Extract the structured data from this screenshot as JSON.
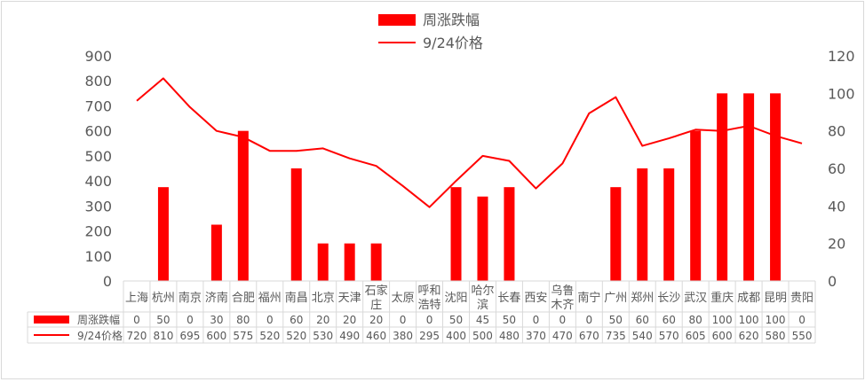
{
  "chart_data": {
    "type": "bar",
    "categories": [
      "上海",
      "杭州",
      "南京",
      "济南",
      "合肥",
      "福州",
      "南昌",
      "北京",
      "天津",
      "石家庄",
      "太原",
      "呼和浩特",
      "沈阳",
      "哈尔滨",
      "长春",
      "西安",
      "乌鲁木齐",
      "南宁",
      "广州",
      "郑州",
      "长沙",
      "武汉",
      "重庆",
      "成都",
      "昆明",
      "贵阳"
    ],
    "category_labels": [
      [
        "上海"
      ],
      [
        "杭州"
      ],
      [
        "南京"
      ],
      [
        "济南"
      ],
      [
        "合肥"
      ],
      [
        "福州"
      ],
      [
        "南昌"
      ],
      [
        "北京"
      ],
      [
        "天津"
      ],
      [
        "石家",
        "庄"
      ],
      [
        "太原"
      ],
      [
        "呼和",
        "浩特"
      ],
      [
        "沈阳"
      ],
      [
        "哈尔",
        "滨"
      ],
      [
        "长春"
      ],
      [
        "西安"
      ],
      [
        "乌鲁",
        "木齐"
      ],
      [
        "南宁"
      ],
      [
        "广州"
      ],
      [
        "郑州"
      ],
      [
        "长沙"
      ],
      [
        "武汉"
      ],
      [
        "重庆"
      ],
      [
        "成都"
      ],
      [
        "昆明"
      ],
      [
        "贵阳"
      ]
    ],
    "series": [
      {
        "name": "周涨跌幅",
        "type": "bar",
        "axis": "right",
        "color": "#ff0000",
        "values": [
          0,
          50,
          0,
          30,
          80,
          0,
          60,
          20,
          20,
          20,
          0,
          0,
          50,
          45,
          50,
          0,
          0,
          0,
          50,
          60,
          60,
          80,
          100,
          100,
          100,
          0
        ]
      },
      {
        "name": "9/24价格",
        "type": "line",
        "axis": "left",
        "color": "#ff0000",
        "values": [
          720,
          810,
          695,
          600,
          575,
          520,
          520,
          530,
          490,
          460,
          380,
          295,
          400,
          500,
          480,
          370,
          470,
          670,
          735,
          540,
          570,
          605,
          600,
          620,
          580,
          550
        ]
      }
    ],
    "y_left": {
      "ticks": [
        0,
        100,
        200,
        300,
        400,
        500,
        600,
        700,
        800,
        900
      ],
      "lim": [
        0,
        900
      ]
    },
    "y_right": {
      "ticks": [
        0,
        20,
        40,
        60,
        80,
        100,
        120
      ],
      "lim": [
        0,
        120
      ]
    },
    "grid": false,
    "legend": "top-center",
    "data_table": true
  }
}
